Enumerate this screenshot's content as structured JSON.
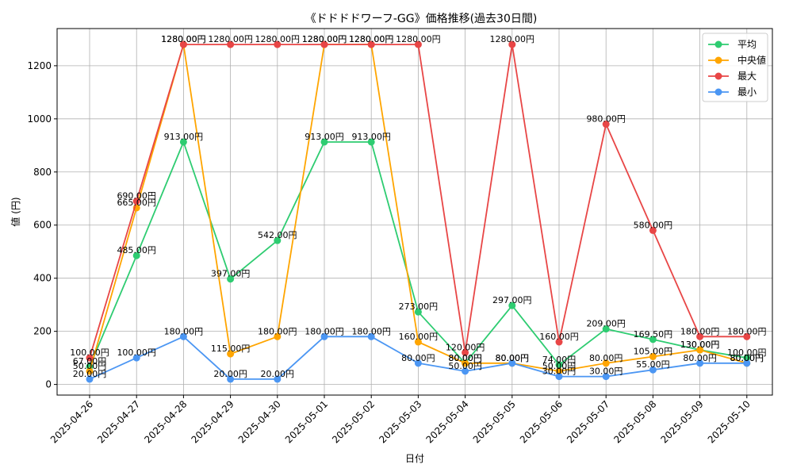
{
  "chart_data": {
    "type": "line",
    "title": "《ドドドドワーフ-GG》価格推移(過去30日間)",
    "xlabel": "日付",
    "ylabel": "値 (円)",
    "ylim": [
      -40,
      1340
    ],
    "yticks": [
      0,
      200,
      400,
      600,
      800,
      1000,
      1200
    ],
    "grid": true,
    "legend_position": "top-right",
    "unit_suffix": "円",
    "categories": [
      "2025-04-26",
      "2025-04-27",
      "2025-04-28",
      "2025-04-29",
      "2025-04-30",
      "2025-05-01",
      "2025-05-02",
      "2025-05-03",
      "2025-05-04",
      "2025-05-05",
      "2025-05-06",
      "2025-05-07",
      "2025-05-08",
      "2025-05-09",
      "2025-05-10"
    ],
    "series": [
      {
        "name": "平均",
        "color": "#2ecc71",
        "values": [
          67.0,
          485.0,
          913.0,
          397.0,
          542.0,
          913.0,
          913.0,
          273.0,
          80.0,
          297.0,
          74.0,
          209.0,
          169.5,
          130.0,
          100.0
        ]
      },
      {
        "name": "中央値",
        "color": "#ffa500",
        "values": [
          50.0,
          665.0,
          1280.0,
          115.0,
          180.0,
          1280.0,
          1280.0,
          160.0,
          80.0,
          80.0,
          50.0,
          80.0,
          105.0,
          130.0,
          80.0
        ]
      },
      {
        "name": "最大",
        "color": "#e84646",
        "values": [
          100.0,
          690.0,
          1280.0,
          1280.0,
          1280.0,
          1280.0,
          1280.0,
          1280.0,
          120.0,
          1280.0,
          160.0,
          980.0,
          580.0,
          180.0,
          180.0
        ]
      },
      {
        "name": "最小",
        "color": "#4b96f3",
        "values": [
          20.0,
          100.0,
          180.0,
          20.0,
          20.0,
          180.0,
          180.0,
          80.0,
          50.0,
          80.0,
          30.0,
          30.0,
          55.0,
          80.0,
          80.0
        ]
      }
    ]
  }
}
